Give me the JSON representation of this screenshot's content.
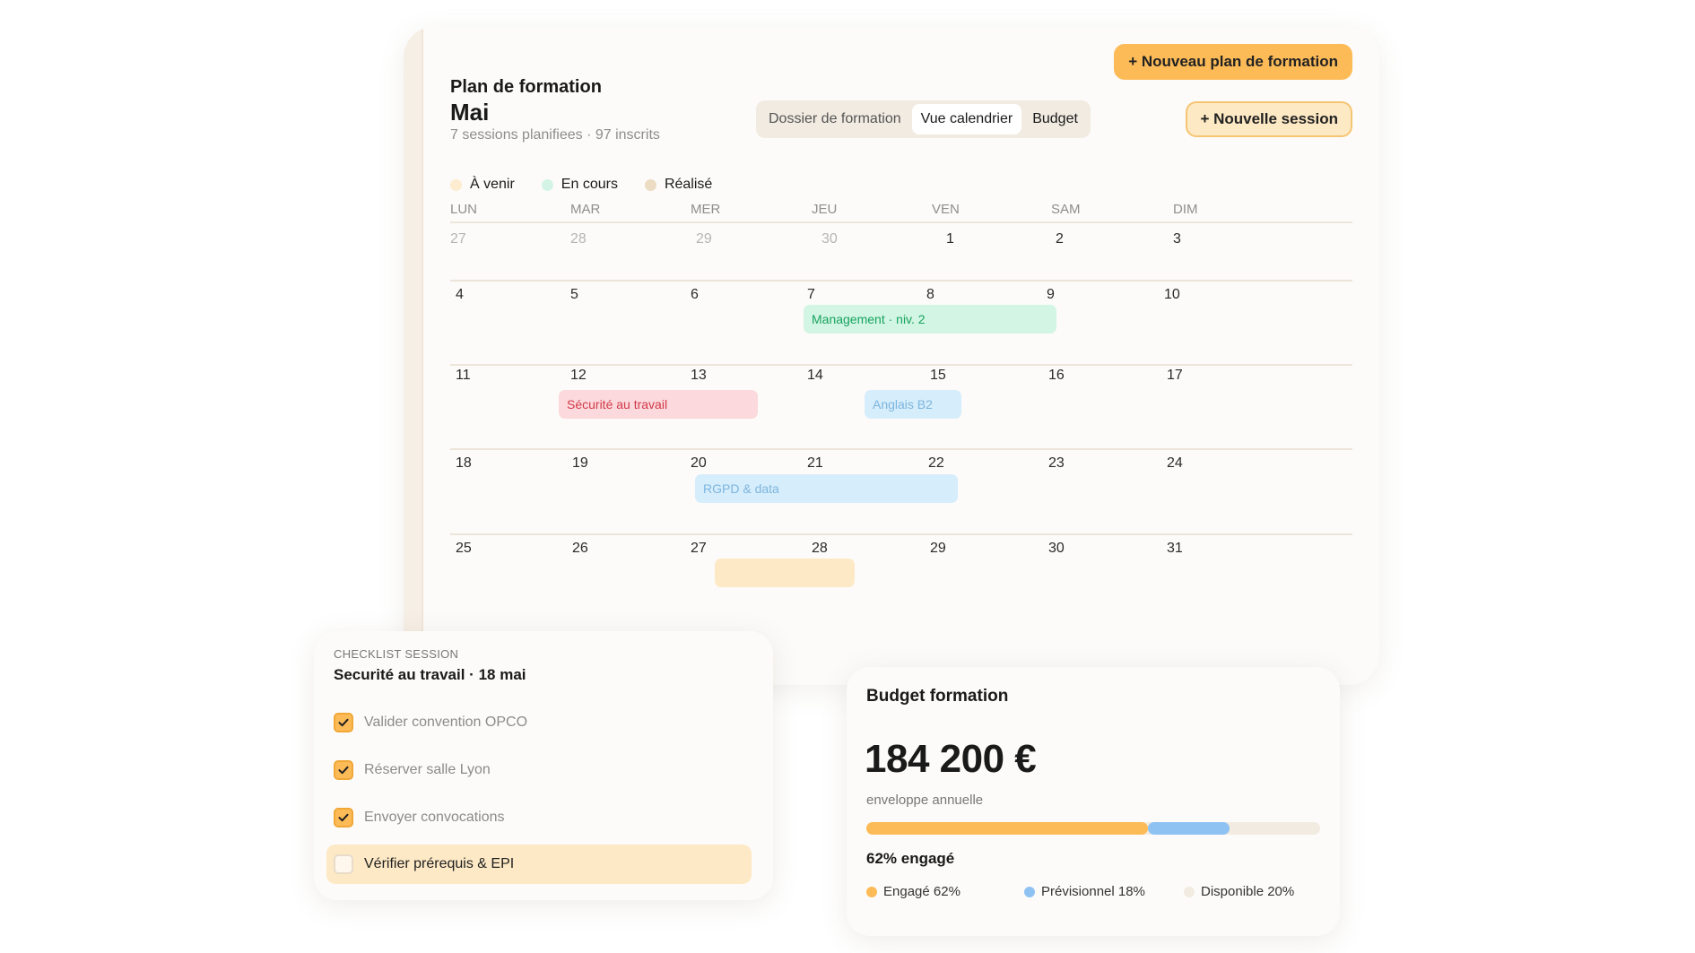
{
  "plan": {
    "title": "Plan de formation",
    "new_plan_button": "+ Nouveau plan de formation",
    "month": "Mai",
    "subtitle": "7 sessions planifiees · 97 inscrits",
    "tabs": [
      "Dossier de formation",
      "Vue calendrier",
      "Budget"
    ],
    "active_tab": "Vue calendrier",
    "new_session_button": "+ Nouvelle session"
  },
  "legend": [
    {
      "label": "À venir",
      "color": "#fdeccf"
    },
    {
      "label": "En cours",
      "color": "#d3f4e5"
    },
    {
      "label": "Réalisé",
      "color": "#ecdcc4"
    }
  ],
  "calendar": {
    "weekdays": [
      "LUN",
      "MAR",
      "MER",
      "JEU",
      "VEN",
      "SAM",
      "DIM"
    ],
    "weeks": [
      [
        "27",
        "28",
        "29",
        "30",
        "1",
        "2",
        "3"
      ],
      [
        "4",
        "5",
        "6",
        "7",
        "8",
        "9",
        "10"
      ],
      [
        "11",
        "12",
        "13",
        "14",
        "15",
        "16",
        "17"
      ],
      [
        "18",
        "19",
        "20",
        "21",
        "22",
        "23",
        "24"
      ],
      [
        "25",
        "26",
        "27",
        "28",
        "29",
        "30",
        "31"
      ]
    ],
    "muted_first_week": [
      "27",
      "28",
      "29",
      "30"
    ],
    "events": [
      {
        "label": "Management · niv. 2",
        "bg": "#d3f5e4",
        "fg": "#17a35f"
      },
      {
        "label": "Sécurité au travail",
        "bg": "#fbd9dc",
        "fg": "#d23a4a"
      },
      {
        "label": "Anglais B2",
        "bg": "#d6edfb",
        "fg": "#7db6de"
      },
      {
        "label": "RGPD & data",
        "bg": "#d6edfb",
        "fg": "#7db6de"
      },
      {
        "label": "",
        "bg": "#fde9c6",
        "fg": "#333333"
      }
    ]
  },
  "checklist": {
    "kicker": "CHECKLIST SESSION",
    "title": "Securité au travail · 18 mai",
    "items": [
      {
        "label": "Valider convention OPCO",
        "checked": true
      },
      {
        "label": "Réserver salle Lyon",
        "checked": true
      },
      {
        "label": "Envoyer convocations",
        "checked": true
      },
      {
        "label": "Vérifier prérequis & EPI",
        "checked": false
      }
    ]
  },
  "budget": {
    "title": "Budget formation",
    "amount": "184 200 €",
    "subtitle": "enveloppe annuelle",
    "engaged_pct_label": "62% engagé",
    "segments": [
      {
        "label": "Engagé 62%",
        "fraction": 0.62,
        "color": "#fdbb58"
      },
      {
        "label": "Prévisionnel 18%",
        "fraction": 0.18,
        "color": "#8ec2f3"
      },
      {
        "label": "Disponible 20%",
        "fraction": 0.2,
        "color": "#f1ebe2"
      }
    ]
  }
}
